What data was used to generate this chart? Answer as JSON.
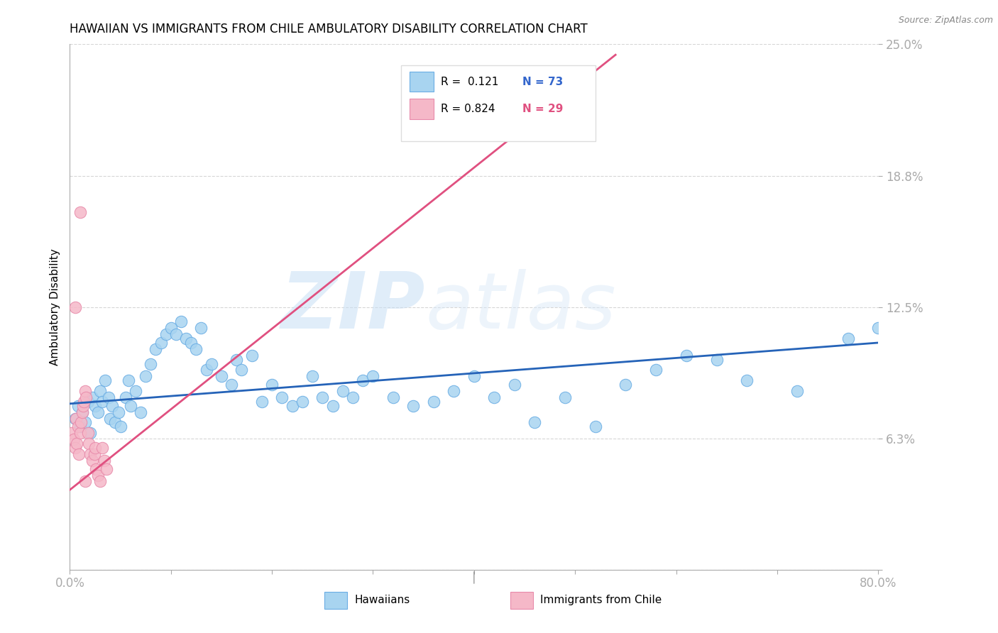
{
  "title": "HAWAIIAN VS IMMIGRANTS FROM CHILE AMBULATORY DISABILITY CORRELATION CHART",
  "source": "Source: ZipAtlas.com",
  "ylabel": "Ambulatory Disability",
  "watermark_zip": "ZIP",
  "watermark_atlas": "atlas",
  "xmin": 0.0,
  "xmax": 0.8,
  "ymin": 0.0,
  "ymax": 0.25,
  "yticks": [
    0.0,
    0.0625,
    0.125,
    0.1875,
    0.25
  ],
  "ytick_labels": [
    "",
    "6.3%",
    "12.5%",
    "18.8%",
    "25.0%"
  ],
  "xticks": [
    0.0,
    0.1,
    0.2,
    0.3,
    0.4,
    0.5,
    0.6,
    0.7,
    0.8
  ],
  "xtick_labels": [
    "0.0%",
    "",
    "",
    "",
    "",
    "",
    "",
    "",
    "80.0%"
  ],
  "legend_R_blue": "0.121",
  "legend_N_blue": "73",
  "legend_R_pink": "0.824",
  "legend_N_pink": "29",
  "blue_scatter_color": "#a8d4f0",
  "pink_scatter_color": "#f5b8c8",
  "blue_edge_color": "#6aade4",
  "pink_edge_color": "#e88aaa",
  "blue_line_color": "#2563b8",
  "pink_line_color": "#e05080",
  "axis_label_color": "#3366cc",
  "grid_color": "#cccccc",
  "blue_scatter_x": [
    0.005,
    0.008,
    0.01,
    0.012,
    0.015,
    0.018,
    0.02,
    0.022,
    0.025,
    0.028,
    0.03,
    0.032,
    0.035,
    0.038,
    0.04,
    0.042,
    0.045,
    0.048,
    0.05,
    0.055,
    0.058,
    0.06,
    0.065,
    0.07,
    0.075,
    0.08,
    0.085,
    0.09,
    0.095,
    0.1,
    0.105,
    0.11,
    0.115,
    0.12,
    0.125,
    0.13,
    0.135,
    0.14,
    0.15,
    0.16,
    0.165,
    0.17,
    0.18,
    0.19,
    0.2,
    0.21,
    0.22,
    0.23,
    0.24,
    0.25,
    0.26,
    0.27,
    0.28,
    0.29,
    0.3,
    0.32,
    0.34,
    0.36,
    0.38,
    0.4,
    0.42,
    0.44,
    0.46,
    0.49,
    0.52,
    0.55,
    0.58,
    0.61,
    0.64,
    0.67,
    0.72,
    0.77,
    0.8
  ],
  "blue_scatter_y": [
    0.072,
    0.078,
    0.068,
    0.075,
    0.07,
    0.08,
    0.065,
    0.082,
    0.078,
    0.075,
    0.085,
    0.08,
    0.09,
    0.082,
    0.072,
    0.078,
    0.07,
    0.075,
    0.068,
    0.082,
    0.09,
    0.078,
    0.085,
    0.075,
    0.092,
    0.098,
    0.105,
    0.108,
    0.112,
    0.115,
    0.112,
    0.118,
    0.11,
    0.108,
    0.105,
    0.115,
    0.095,
    0.098,
    0.092,
    0.088,
    0.1,
    0.095,
    0.102,
    0.08,
    0.088,
    0.082,
    0.078,
    0.08,
    0.092,
    0.082,
    0.078,
    0.085,
    0.082,
    0.09,
    0.092,
    0.082,
    0.078,
    0.08,
    0.085,
    0.092,
    0.082,
    0.088,
    0.07,
    0.082,
    0.068,
    0.088,
    0.095,
    0.102,
    0.1,
    0.09,
    0.085,
    0.11,
    0.115
  ],
  "pink_scatter_x": [
    0.002,
    0.004,
    0.005,
    0.006,
    0.007,
    0.008,
    0.009,
    0.01,
    0.011,
    0.012,
    0.013,
    0.014,
    0.015,
    0.016,
    0.018,
    0.019,
    0.02,
    0.022,
    0.024,
    0.025,
    0.026,
    0.028,
    0.03,
    0.032,
    0.034,
    0.036,
    0.01,
    0.005,
    0.015
  ],
  "pink_scatter_y": [
    0.065,
    0.062,
    0.058,
    0.072,
    0.06,
    0.068,
    0.055,
    0.065,
    0.07,
    0.075,
    0.078,
    0.08,
    0.085,
    0.082,
    0.065,
    0.06,
    0.055,
    0.052,
    0.055,
    0.058,
    0.048,
    0.045,
    0.042,
    0.058,
    0.052,
    0.048,
    0.17,
    0.125,
    0.042
  ],
  "blue_line_x": [
    0.0,
    0.8
  ],
  "blue_line_y": [
    0.079,
    0.108
  ],
  "pink_line_x": [
    0.0,
    0.54
  ],
  "pink_line_y": [
    0.038,
    0.245
  ],
  "figsize": [
    14.06,
    8.92
  ],
  "dpi": 100
}
